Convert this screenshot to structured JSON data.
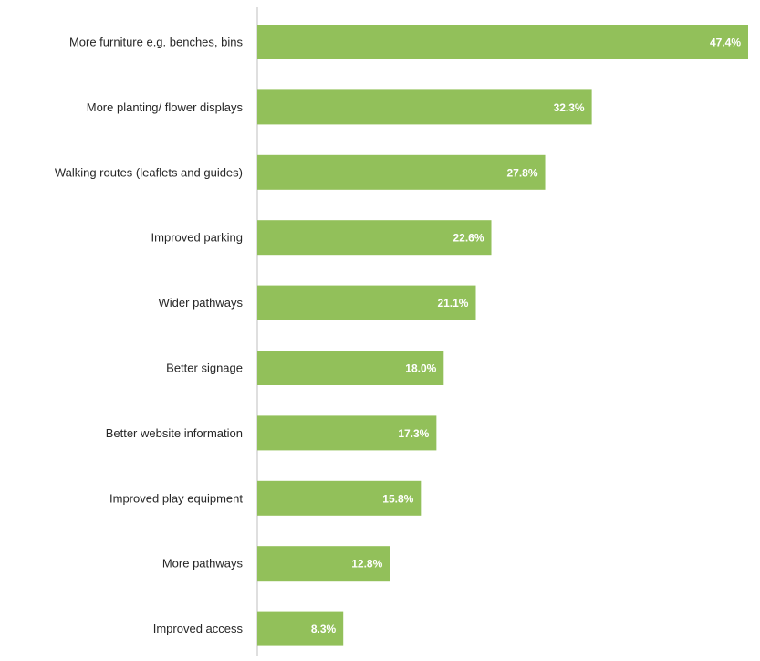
{
  "chart_data": {
    "type": "bar",
    "orientation": "horizontal",
    "categories": [
      "More furniture e.g. benches, bins",
      "More planting/ flower displays",
      "Walking routes (leaflets and guides)",
      "Improved parking",
      "Wider pathways",
      "Better signage",
      "Better website information",
      "Improved play equipment",
      "More pathways",
      "Improved access"
    ],
    "values": [
      47.4,
      32.3,
      27.8,
      22.6,
      21.1,
      18.0,
      17.3,
      15.8,
      12.8,
      8.3
    ],
    "value_labels": [
      "47.4%",
      "32.3%",
      "27.8%",
      "22.6%",
      "21.1%",
      "18.0%",
      "17.3%",
      "15.8%",
      "12.8%",
      "8.3%"
    ],
    "xlim": [
      0,
      47.4
    ],
    "grid": false,
    "legend": "none",
    "colors": {
      "bar": "#92c05a",
      "axis": "#bfbfbf",
      "category_text": "#262626",
      "value_text": "#ffffff"
    }
  }
}
